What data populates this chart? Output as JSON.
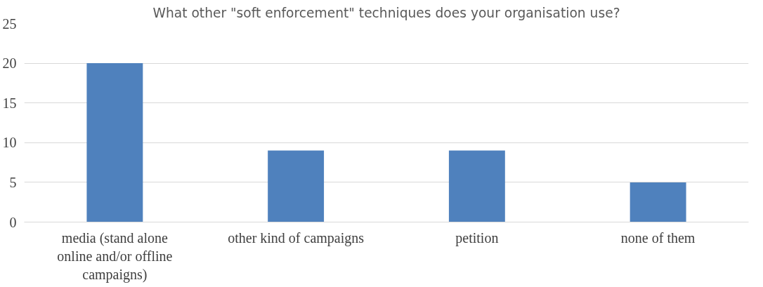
{
  "chart_data": {
    "type": "bar",
    "title": "What other \"soft enforcement\" techniques does your organisation use?",
    "categories": [
      "media (stand alone online and/or offline campaigns)",
      "other kind of campaigns",
      "petition",
      "none of them"
    ],
    "values": [
      20,
      9,
      9,
      5
    ],
    "color": "#4f81bd",
    "ylim": [
      0,
      25
    ],
    "yticks": [
      0,
      5,
      10,
      15,
      20,
      25
    ],
    "grid": "y"
  }
}
